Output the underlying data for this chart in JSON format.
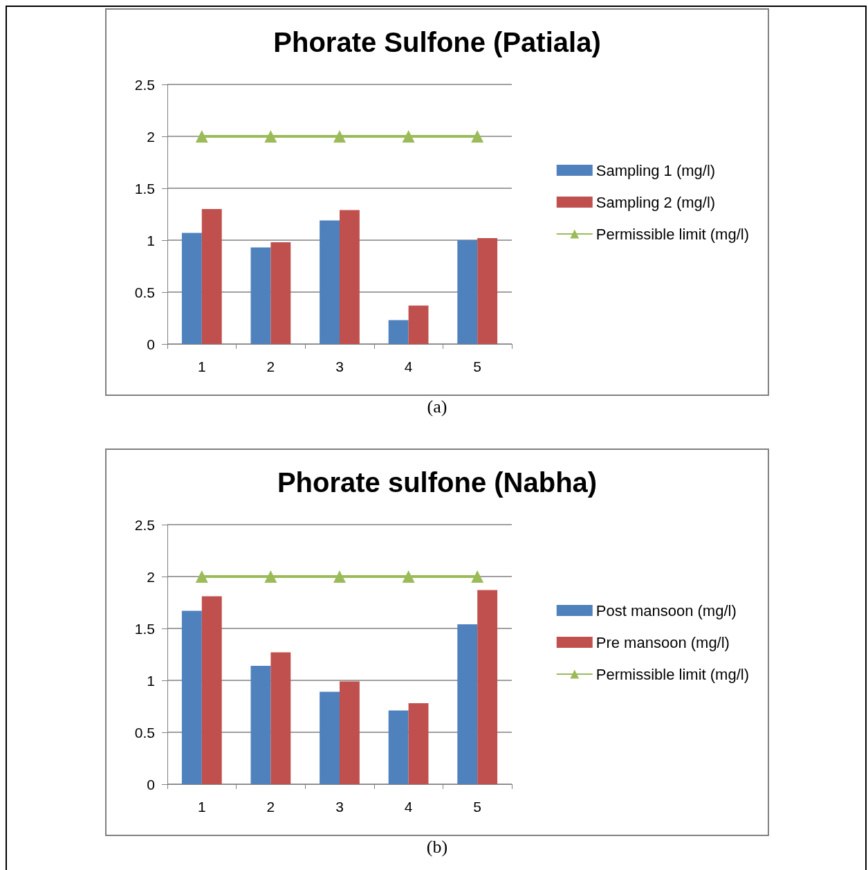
{
  "chart_data": [
    {
      "type": "bar",
      "title": "Phorate Sulfone (Patiala)",
      "categories": [
        "1",
        "2",
        "3",
        "4",
        "5"
      ],
      "series": [
        {
          "name": "Sampling 1 (mg/l)",
          "color": "#4f81bd",
          "values": [
            1.07,
            0.93,
            1.19,
            0.23,
            1.0
          ]
        },
        {
          "name": "Sampling 2 (mg/l)",
          "color": "#c0504d",
          "values": [
            1.3,
            0.98,
            1.29,
            0.37,
            1.02
          ]
        },
        {
          "name": "Permissible limit (mg/l)",
          "type": "line",
          "color": "#9bbb59",
          "marker": "triangle",
          "values": [
            2,
            2,
            2,
            2,
            2
          ]
        }
      ],
      "ylim": [
        0,
        2.5
      ],
      "yticks": [
        0,
        0.5,
        1,
        1.5,
        2,
        2.5
      ],
      "grid": "y",
      "legend": "right",
      "annotations": [
        "(a)"
      ]
    },
    {
      "type": "bar",
      "title": "Phorate sulfone (Nabha)",
      "categories": [
        "1",
        "2",
        "3",
        "4",
        "5"
      ],
      "series": [
        {
          "name": "Post mansoon (mg/l)",
          "color": "#4f81bd",
          "values": [
            1.67,
            1.14,
            0.89,
            0.71,
            1.54
          ]
        },
        {
          "name": "Pre mansoon (mg/l)",
          "color": "#c0504d",
          "values": [
            1.81,
            1.27,
            0.99,
            0.78,
            1.87
          ]
        },
        {
          "name": "Permissible limit (mg/l)",
          "type": "line",
          "color": "#9bbb59",
          "marker": "triangle",
          "values": [
            2,
            2,
            2,
            2,
            2
          ]
        }
      ],
      "ylim": [
        0,
        2.5
      ],
      "yticks": [
        0,
        0.5,
        1,
        1.5,
        2,
        2.5
      ],
      "grid": "y",
      "legend": "right",
      "annotations": [
        "(b)"
      ]
    }
  ]
}
